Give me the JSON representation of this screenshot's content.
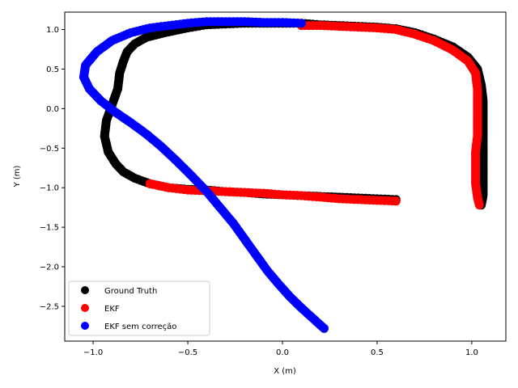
{
  "chart_data": {
    "type": "scatter",
    "title": "",
    "xlabel": "X (m)",
    "ylabel": "Y (m)",
    "xlim": [
      -1.15,
      1.18
    ],
    "ylim": [
      -2.94,
      1.22
    ],
    "xticks": [
      "−1.0",
      "−0.5",
      "0.0",
      "0.5",
      "1.0"
    ],
    "xtick_values": [
      -1.0,
      -0.5,
      0.0,
      0.5,
      1.0
    ],
    "yticks": [
      "1.0",
      "0.5",
      "0.0",
      "−0.5",
      "−1.0",
      "−1.5",
      "−2.0",
      "−2.5"
    ],
    "ytick_values": [
      1.0,
      0.5,
      0.0,
      -0.5,
      -1.0,
      -1.5,
      -2.0,
      -2.5
    ],
    "grid": false,
    "legend_position": "lower-left",
    "series": [
      {
        "name": "Ground Truth",
        "color": "#000000",
        "points": [
          [
            0.6,
            -1.15
          ],
          [
            0.5,
            -1.14
          ],
          [
            0.4,
            -1.13
          ],
          [
            0.3,
            -1.12
          ],
          [
            0.2,
            -1.11
          ],
          [
            0.1,
            -1.1
          ],
          [
            0.0,
            -1.09
          ],
          [
            -0.1,
            -1.08
          ],
          [
            -0.2,
            -1.06
          ],
          [
            -0.3,
            -1.05
          ],
          [
            -0.4,
            -1.03
          ],
          [
            -0.5,
            -1.02
          ],
          [
            -0.6,
            -1.0
          ],
          [
            -0.7,
            -0.95
          ],
          [
            -0.78,
            -0.88
          ],
          [
            -0.84,
            -0.8
          ],
          [
            -0.88,
            -0.7
          ],
          [
            -0.92,
            -0.55
          ],
          [
            -0.94,
            -0.35
          ],
          [
            -0.93,
            -0.15
          ],
          [
            -0.9,
            0.05
          ],
          [
            -0.87,
            0.25
          ],
          [
            -0.86,
            0.45
          ],
          [
            -0.84,
            0.6
          ],
          [
            -0.82,
            0.72
          ],
          [
            -0.78,
            0.82
          ],
          [
            -0.72,
            0.9
          ],
          [
            -0.62,
            0.96
          ],
          [
            -0.5,
            1.02
          ],
          [
            -0.4,
            1.06
          ],
          [
            -0.3,
            1.07
          ],
          [
            -0.2,
            1.08
          ],
          [
            -0.1,
            1.08
          ],
          [
            0.0,
            1.08
          ],
          [
            0.1,
            1.08
          ],
          [
            0.2,
            1.06
          ],
          [
            0.3,
            1.05
          ],
          [
            0.4,
            1.04
          ],
          [
            0.5,
            1.03
          ],
          [
            0.6,
            1.01
          ],
          [
            0.7,
            0.96
          ],
          [
            0.8,
            0.88
          ],
          [
            0.9,
            0.78
          ],
          [
            0.98,
            0.65
          ],
          [
            1.03,
            0.5
          ],
          [
            1.05,
            0.3
          ],
          [
            1.06,
            0.1
          ],
          [
            1.06,
            -0.1
          ],
          [
            1.06,
            -0.3
          ],
          [
            1.06,
            -0.5
          ],
          [
            1.06,
            -0.7
          ],
          [
            1.06,
            -0.9
          ],
          [
            1.06,
            -1.1
          ],
          [
            1.05,
            -1.22
          ]
        ]
      },
      {
        "name": "EKF",
        "color": "#ff0000",
        "points": [
          [
            0.6,
            -1.17
          ],
          [
            0.5,
            -1.16
          ],
          [
            0.4,
            -1.15
          ],
          [
            0.3,
            -1.14
          ],
          [
            0.2,
            -1.12
          ],
          [
            0.1,
            -1.1
          ],
          [
            0.0,
            -1.09
          ],
          [
            -0.1,
            -1.07
          ],
          [
            -0.2,
            -1.06
          ],
          [
            -0.3,
            -1.05
          ],
          [
            -0.4,
            -1.04
          ],
          [
            -0.5,
            -1.03
          ],
          [
            -0.6,
            -1.0
          ],
          [
            -0.7,
            -0.95
          ],
          [
            0.1,
            1.05
          ],
          [
            0.2,
            1.05
          ],
          [
            0.3,
            1.04
          ],
          [
            0.4,
            1.03
          ],
          [
            0.5,
            1.02
          ],
          [
            0.6,
            1.0
          ],
          [
            0.7,
            0.94
          ],
          [
            0.8,
            0.86
          ],
          [
            0.9,
            0.74
          ],
          [
            0.98,
            0.6
          ],
          [
            1.02,
            0.45
          ],
          [
            1.03,
            0.25
          ],
          [
            1.03,
            0.05
          ],
          [
            1.03,
            -0.15
          ],
          [
            1.03,
            -0.35
          ],
          [
            1.02,
            -0.55
          ],
          [
            1.02,
            -0.75
          ],
          [
            1.02,
            -0.95
          ],
          [
            1.03,
            -1.12
          ],
          [
            1.04,
            -1.22
          ]
        ]
      },
      {
        "name": "EKF sem correção",
        "color": "#0000ff",
        "points": [
          [
            0.1,
            1.08
          ],
          [
            0.0,
            1.09
          ],
          [
            -0.1,
            1.09
          ],
          [
            -0.2,
            1.1
          ],
          [
            -0.3,
            1.1
          ],
          [
            -0.4,
            1.1
          ],
          [
            -0.5,
            1.08
          ],
          [
            -0.6,
            1.05
          ],
          [
            -0.7,
            1.02
          ],
          [
            -0.8,
            0.96
          ],
          [
            -0.9,
            0.86
          ],
          [
            -0.98,
            0.72
          ],
          [
            -1.04,
            0.55
          ],
          [
            -1.05,
            0.4
          ],
          [
            -1.02,
            0.25
          ],
          [
            -0.96,
            0.1
          ],
          [
            -0.88,
            -0.05
          ],
          [
            -0.8,
            -0.18
          ],
          [
            -0.72,
            -0.32
          ],
          [
            -0.64,
            -0.48
          ],
          [
            -0.56,
            -0.66
          ],
          [
            -0.48,
            -0.85
          ],
          [
            -0.4,
            -1.05
          ],
          [
            -0.33,
            -1.25
          ],
          [
            -0.26,
            -1.45
          ],
          [
            -0.2,
            -1.65
          ],
          [
            -0.14,
            -1.85
          ],
          [
            -0.08,
            -2.05
          ],
          [
            -0.02,
            -2.22
          ],
          [
            0.04,
            -2.38
          ],
          [
            0.1,
            -2.52
          ],
          [
            0.16,
            -2.65
          ],
          [
            0.22,
            -2.78
          ]
        ]
      }
    ]
  }
}
